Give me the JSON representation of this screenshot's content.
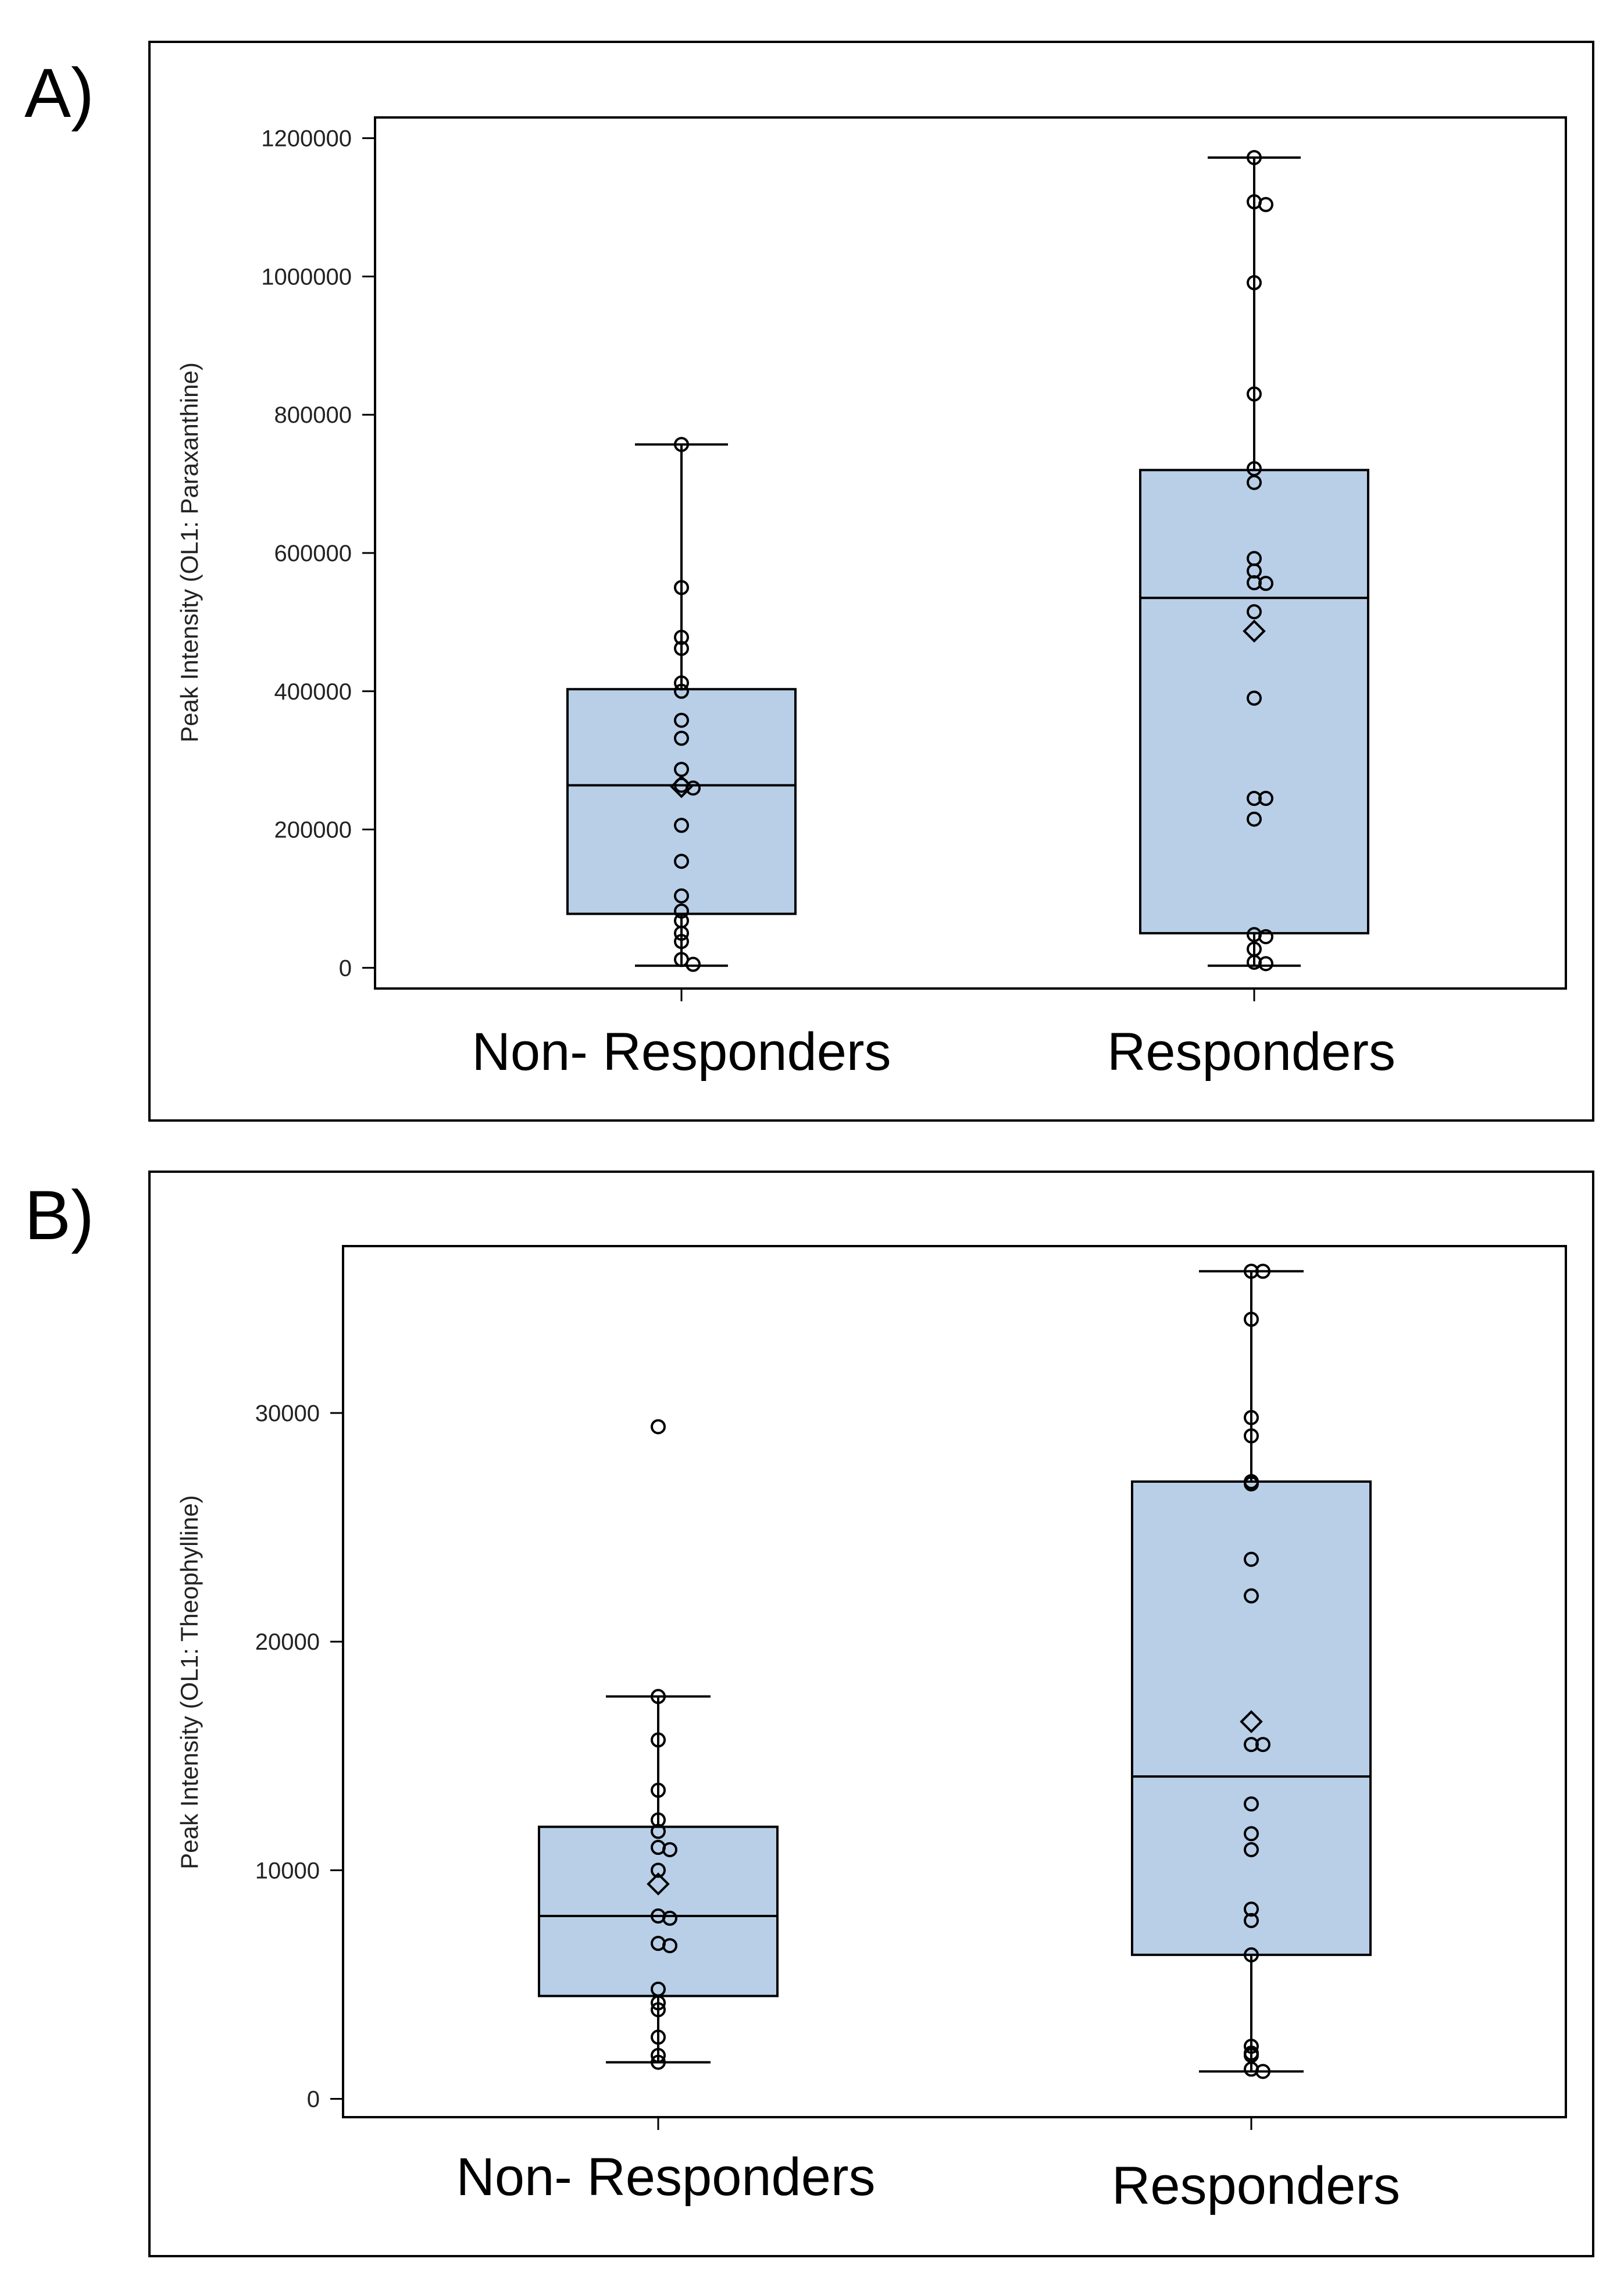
{
  "chart_data": [
    {
      "panel_label": "A)",
      "type": "box",
      "ylabel": "Peak Intensity (OL1: Paraxanthine)",
      "ylim": [
        -30000,
        1230000
      ],
      "yticks": [
        0,
        200000,
        400000,
        600000,
        800000,
        1000000,
        1200000
      ],
      "ytick_labels": [
        "0",
        "200000",
        "400000",
        "600000",
        "800000",
        "1000000",
        "1200000"
      ],
      "categories": [
        "Non- Responders",
        "Responders"
      ],
      "box_fill": "#b9cfe8",
      "groups": [
        {
          "name": "Non- Responders",
          "min": 3000,
          "q1": 78000,
          "median": 264000,
          "q3": 403000,
          "max": 757000,
          "mean": 262000,
          "points": [
            757000,
            550000,
            478000,
            462000,
            412000,
            400000,
            358000,
            332000,
            287000,
            264000,
            260000,
            206000,
            154000,
            104000,
            82000,
            68000,
            50000,
            38000,
            12000,
            5000
          ]
        },
        {
          "name": "Responders",
          "min": 3000,
          "q1": 50000,
          "median": 535000,
          "q3": 720000,
          "max": 1172000,
          "mean": 487000,
          "points": [
            1172000,
            1108000,
            1104000,
            991000,
            830000,
            722000,
            702000,
            592000,
            574000,
            557000,
            556000,
            515000,
            390000,
            245000,
            245000,
            215000,
            48000,
            45000,
            27000,
            8000,
            6000
          ]
        }
      ]
    },
    {
      "panel_label": "B)",
      "type": "box",
      "ylabel": "Peak Intensity (OL1: Theophylline)",
      "ylim": [
        -800,
        37300
      ],
      "yticks": [
        0,
        10000,
        20000,
        30000
      ],
      "ytick_labels": [
        "0",
        "10000",
        "20000",
        "30000"
      ],
      "categories": [
        "Non- Responders",
        "Responders"
      ],
      "box_fill": "#b9cfe8",
      "groups": [
        {
          "name": "Non- Responders",
          "min": 1600,
          "q1": 4500,
          "median": 8000,
          "q3": 11900,
          "max": 17600,
          "mean": 9400,
          "points": [
            29400,
            17600,
            15700,
            13500,
            12200,
            11700,
            11000,
            10900,
            10000,
            8000,
            7900,
            6800,
            6700,
            4800,
            4200,
            3900,
            2700,
            1900,
            1600
          ]
        },
        {
          "name": "Responders",
          "min": 1200,
          "q1": 6300,
          "median": 14100,
          "q3": 27000,
          "max": 36200,
          "mean": 16500,
          "points": [
            36200,
            36200,
            34100,
            29800,
            29000,
            27000,
            26900,
            23600,
            22000,
            15500,
            15500,
            12900,
            11600,
            10900,
            8300,
            7800,
            6300,
            2300,
            2000,
            1900,
            1300,
            1200
          ]
        }
      ]
    }
  ]
}
